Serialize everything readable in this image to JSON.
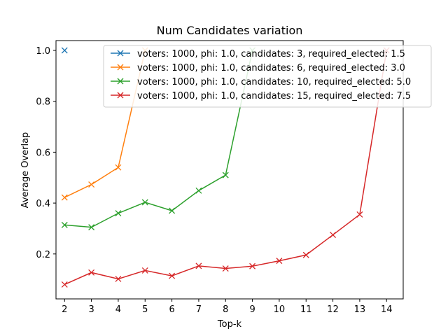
{
  "chart_data": {
    "type": "line",
    "title": "Num Candidates variation",
    "xlabel": "Top-k",
    "ylabel": "Average Overlap",
    "xlim": [
      1.68,
      14.62
    ],
    "ylim": [
      0.0234,
      1.0385
    ],
    "x_ticks": [
      2,
      3,
      4,
      5,
      6,
      7,
      8,
      9,
      10,
      11,
      12,
      13,
      14
    ],
    "y_ticks": [
      0.2,
      0.4,
      0.6,
      0.8,
      1.0
    ],
    "y_tick_labels": [
      "0.2",
      "0.4",
      "0.6",
      "0.8",
      "1.0"
    ],
    "grid": false,
    "legend_position": "top-right",
    "marker": "x",
    "series": [
      {
        "name": "voters: 1000, phi: 1.0, candidates: 3, required_elected: 1.5",
        "color": "#1f77b4",
        "x": [
          2
        ],
        "values": [
          1.0
        ]
      },
      {
        "name": "voters: 1000, phi: 1.0, candidates: 6, required_elected: 3.0",
        "color": "#ff7f0e",
        "x": [
          2,
          3,
          4,
          5
        ],
        "values": [
          0.422,
          0.473,
          0.54,
          1.0
        ]
      },
      {
        "name": "voters: 1000, phi: 1.0, candidates: 10, required_elected: 5.0",
        "color": "#2ca02c",
        "x": [
          2,
          3,
          4,
          5,
          6,
          7,
          8,
          9
        ],
        "values": [
          0.314,
          0.305,
          0.36,
          0.403,
          0.37,
          0.449,
          0.51,
          1.0
        ]
      },
      {
        "name": "voters: 1000, phi: 1.0, candidates: 15, required_elected: 7.5",
        "color": "#d62728",
        "x": [
          2,
          3,
          4,
          5,
          6,
          7,
          8,
          9,
          10,
          11,
          12,
          13,
          14
        ],
        "values": [
          0.08,
          0.127,
          0.102,
          0.135,
          0.114,
          0.153,
          0.143,
          0.152,
          0.173,
          0.196,
          0.275,
          0.355,
          1.0
        ]
      }
    ]
  }
}
